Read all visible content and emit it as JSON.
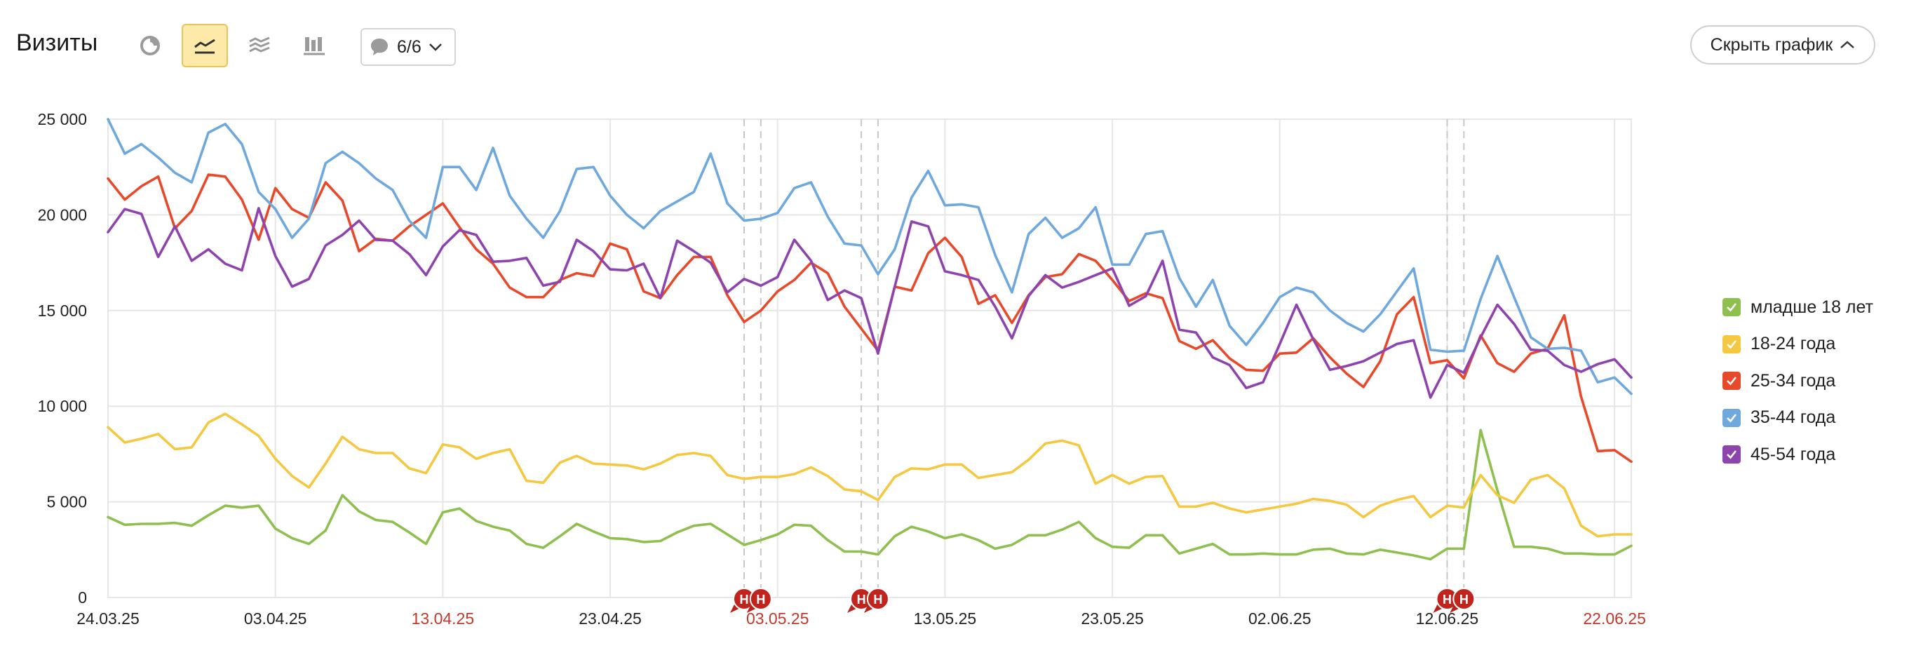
{
  "header": {
    "title": "Визиты",
    "notes_label": "6/6",
    "hide_button_label": "Скрыть график",
    "tools": [
      {
        "icon": "pie-chart-icon",
        "active": false
      },
      {
        "icon": "line-chart-icon",
        "active": true
      },
      {
        "icon": "area-chart-icon",
        "active": false
      },
      {
        "icon": "bar-chart-icon",
        "active": false
      }
    ]
  },
  "colors": {
    "under-18": "#8ebf4f",
    "18-24": "#f5c842",
    "25-34": "#e8492b",
    "35-44": "#6fa8dc",
    "45-54": "#8e44ad",
    "holiday_label": "#c0392b",
    "grid": "#e6e6e6"
  },
  "chart_data": {
    "type": "line",
    "x_start": "24.03.25",
    "x_ticks": [
      {
        "label": "24.03.25",
        "index": 0,
        "holiday": false
      },
      {
        "label": "03.04.25",
        "index": 10,
        "holiday": false
      },
      {
        "label": "13.04.25",
        "index": 20,
        "holiday": true
      },
      {
        "label": "23.04.25",
        "index": 30,
        "holiday": false
      },
      {
        "label": "03.05.25",
        "index": 40,
        "holiday": true
      },
      {
        "label": "13.05.25",
        "index": 50,
        "holiday": false
      },
      {
        "label": "23.05.25",
        "index": 60,
        "holiday": false
      },
      {
        "label": "02.06.25",
        "index": 70,
        "holiday": false
      },
      {
        "label": "12.06.25",
        "index": 80,
        "holiday": false
      },
      {
        "label": "22.06.25",
        "index": 90,
        "holiday": true
      }
    ],
    "y_ticks": [
      "0",
      "5 000",
      "10 000",
      "15 000",
      "20 000",
      "25 000"
    ],
    "ylim": [
      0,
      25000
    ],
    "grid": true,
    "legend_position": "right",
    "annotation_marks": [
      {
        "label": "Н",
        "index": 38
      },
      {
        "label": "Н",
        "index": 39
      },
      {
        "label": "Н",
        "index": 45
      },
      {
        "label": "Н",
        "index": 46
      },
      {
        "label": "Н",
        "index": 80
      },
      {
        "label": "Н",
        "index": 81
      }
    ],
    "annotation_lines": [
      38,
      39,
      45,
      46,
      80,
      81
    ],
    "series": [
      {
        "name": "младше 18 лет",
        "key": "under-18",
        "values": [
          4200,
          3800,
          3850,
          3850,
          3900,
          3750,
          4300,
          4800,
          4700,
          4800,
          3600,
          3100,
          2800,
          3500,
          5350,
          4500,
          4050,
          3950,
          3400,
          2800,
          4450,
          4650,
          4000,
          3700,
          3500,
          2800,
          2600,
          3200,
          3850,
          3450,
          3100,
          3050,
          2900,
          2950,
          3400,
          3750,
          3850,
          3300,
          2750,
          3000,
          3300,
          3800,
          3750,
          3000,
          2400,
          2400,
          2250,
          3200,
          3700,
          3450,
          3100,
          3300,
          3000,
          2550,
          2750,
          3250,
          3250,
          3550,
          3950,
          3100,
          2650,
          2600,
          3250,
          3250,
          2300,
          2550,
          2800,
          2250,
          2250,
          2300,
          2250,
          2250,
          2500,
          2550,
          2300,
          2250,
          2500,
          2350,
          2200,
          2000,
          2550,
          2550,
          8750,
          5600,
          2650,
          2650,
          2550,
          2300,
          2300,
          2250,
          2250,
          2700
        ]
      },
      {
        "name": "18-24 года",
        "key": "18-24",
        "values": [
          8900,
          8100,
          8300,
          8550,
          7750,
          7850,
          9150,
          9600,
          9050,
          8450,
          7250,
          6350,
          5750,
          7000,
          8400,
          7750,
          7550,
          7550,
          6750,
          6500,
          8000,
          7850,
          7250,
          7550,
          7750,
          6100,
          6000,
          7050,
          7400,
          7000,
          6950,
          6900,
          6700,
          7000,
          7450,
          7550,
          7400,
          6400,
          6200,
          6300,
          6300,
          6450,
          6800,
          6350,
          5650,
          5550,
          5100,
          6300,
          6750,
          6700,
          6950,
          6950,
          6250,
          6400,
          6550,
          7200,
          8050,
          8200,
          7950,
          5950,
          6400,
          5950,
          6300,
          6350,
          4750,
          4750,
          4950,
          4650,
          4450,
          4600,
          4750,
          4900,
          5150,
          5050,
          4850,
          4200,
          4800,
          5100,
          5300,
          4200,
          4800,
          4700,
          6400,
          5350,
          4950,
          6150,
          6400,
          5700,
          3750,
          3200,
          3300,
          3300
        ]
      },
      {
        "name": "25-34 года",
        "key": "25-34",
        "values": [
          21900,
          20800,
          21500,
          22000,
          19300,
          20200,
          22100,
          22000,
          20800,
          18700,
          21400,
          20300,
          19850,
          21700,
          20750,
          18100,
          18750,
          18650,
          19400,
          20000,
          20600,
          19350,
          18200,
          17450,
          16200,
          15700,
          15700,
          16600,
          16950,
          16800,
          18500,
          18200,
          16000,
          15650,
          16850,
          17800,
          17800,
          15800,
          14400,
          15000,
          16000,
          16600,
          17500,
          16950,
          15200,
          14050,
          12900,
          16250,
          16050,
          18000,
          18800,
          17800,
          15350,
          15800,
          14350,
          15800,
          16750,
          16900,
          17950,
          17600,
          16600,
          15500,
          15900,
          15650,
          13400,
          13000,
          13450,
          12500,
          11900,
          11850,
          12750,
          12800,
          13550,
          12550,
          11700,
          11000,
          12350,
          14800,
          15700,
          12250,
          12400,
          11450,
          13700,
          12250,
          11800,
          12750,
          13000,
          14750,
          10500,
          7650,
          7700,
          7100
        ]
      },
      {
        "name": "35-44 года",
        "key": "35-44",
        "values": [
          25000,
          23200,
          23700,
          23000,
          22200,
          21700,
          24300,
          24750,
          23700,
          21200,
          20300,
          18800,
          19800,
          22700,
          23300,
          22700,
          21900,
          21300,
          19700,
          18800,
          22500,
          22500,
          21300,
          23500,
          21000,
          19800,
          18800,
          20200,
          22400,
          22500,
          21000,
          20000,
          19300,
          20200,
          20700,
          21200,
          23200,
          20600,
          19700,
          19800,
          20100,
          21400,
          21700,
          19900,
          18500,
          18400,
          16900,
          18200,
          20900,
          22300,
          20500,
          20550,
          20400,
          17900,
          15950,
          19000,
          19850,
          18800,
          19300,
          20400,
          17400,
          17400,
          19000,
          19150,
          16700,
          15200,
          16600,
          14200,
          13200,
          14350,
          15700,
          16200,
          15950,
          15000,
          14350,
          13900,
          14800,
          16000,
          17200,
          12950,
          12850,
          12900,
          15600,
          17850,
          15700,
          13600,
          13000,
          13050,
          12900,
          11250,
          11500,
          10650
        ]
      },
      {
        "name": "45-54 года",
        "key": "45-54",
        "values": [
          19100,
          20300,
          20050,
          17800,
          19400,
          17600,
          18200,
          17450,
          17100,
          20350,
          17850,
          16250,
          16650,
          18400,
          18950,
          19700,
          18700,
          18650,
          17950,
          16850,
          18350,
          19200,
          18950,
          17550,
          17600,
          17750,
          16300,
          16500,
          18700,
          18100,
          17150,
          17100,
          17450,
          15650,
          18650,
          18100,
          17500,
          15950,
          16650,
          16300,
          16750,
          18700,
          17600,
          15550,
          16050,
          15650,
          12750,
          16250,
          19650,
          19400,
          17050,
          16850,
          16600,
          15200,
          13550,
          15750,
          16850,
          16200,
          16500,
          16850,
          17200,
          15250,
          15750,
          17600,
          14000,
          13850,
          12550,
          12150,
          10950,
          11250,
          13250,
          15300,
          13500,
          11900,
          12100,
          12350,
          12800,
          13250,
          13450,
          10450,
          12150,
          11750,
          13600,
          15300,
          14300,
          12950,
          12900,
          12150,
          11800,
          12200,
          12450,
          11500
        ]
      }
    ]
  }
}
